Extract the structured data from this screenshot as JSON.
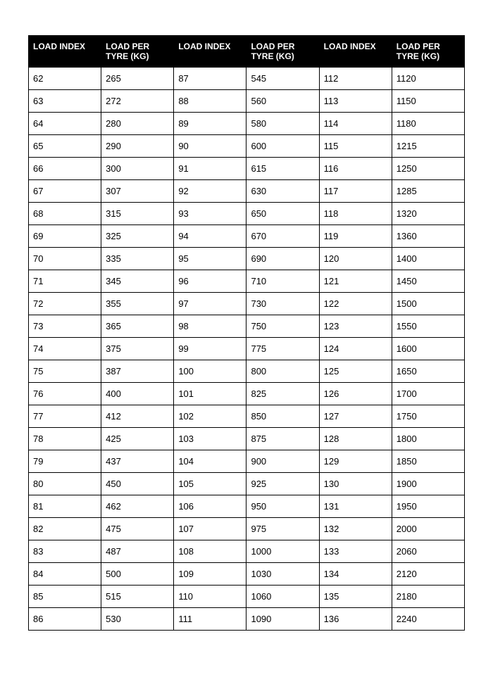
{
  "table": {
    "type": "table",
    "background_color": "#ffffff",
    "header_bg": "#000000",
    "header_fg": "#ffffff",
    "border_color": "#000000",
    "header_fontsize": 12,
    "cell_fontsize": 13,
    "columns": [
      "LOAD INDEX",
      "LOAD PER TYRE (KG)",
      "LOAD INDEX",
      "LOAD PER TYRE (KG)",
      "LOAD INDEX",
      "LOAD PER TYRE (KG)"
    ],
    "rows": [
      [
        "62",
        "265",
        "87",
        "545",
        "112",
        "1120"
      ],
      [
        "63",
        "272",
        "88",
        "560",
        "113",
        "1150"
      ],
      [
        "64",
        "280",
        "89",
        "580",
        "114",
        "1180"
      ],
      [
        "65",
        "290",
        "90",
        "600",
        "115",
        "1215"
      ],
      [
        "66",
        "300",
        "91",
        "615",
        "116",
        "1250"
      ],
      [
        "67",
        "307",
        "92",
        "630",
        "117",
        "1285"
      ],
      [
        "68",
        "315",
        "93",
        "650",
        "118",
        "1320"
      ],
      [
        "69",
        "325",
        "94",
        "670",
        "119",
        "1360"
      ],
      [
        "70",
        "335",
        "95",
        "690",
        "120",
        "1400"
      ],
      [
        "71",
        "345",
        "96",
        "710",
        "121",
        "1450"
      ],
      [
        "72",
        "355",
        "97",
        "730",
        "122",
        "1500"
      ],
      [
        "73",
        "365",
        "98",
        "750",
        "123",
        "1550"
      ],
      [
        "74",
        "375",
        "99",
        "775",
        "124",
        "1600"
      ],
      [
        "75",
        "387",
        "100",
        "800",
        "125",
        "1650"
      ],
      [
        "76",
        "400",
        "101",
        "825",
        "126",
        "1700"
      ],
      [
        "77",
        "412",
        "102",
        "850",
        "127",
        "1750"
      ],
      [
        "78",
        "425",
        "103",
        "875",
        "128",
        "1800"
      ],
      [
        "79",
        "437",
        "104",
        "900",
        "129",
        "1850"
      ],
      [
        "80",
        "450",
        "105",
        "925",
        "130",
        "1900"
      ],
      [
        "81",
        "462",
        "106",
        "950",
        "131",
        "1950"
      ],
      [
        "82",
        "475",
        "107",
        "975",
        "132",
        "2000"
      ],
      [
        "83",
        "487",
        "108",
        "1000",
        "133",
        "2060"
      ],
      [
        "84",
        "500",
        "109",
        "1030",
        "134",
        "2120"
      ],
      [
        "85",
        "515",
        "110",
        "1060",
        "135",
        "2180"
      ],
      [
        "86",
        "530",
        "111",
        "1090",
        "136",
        "2240"
      ]
    ]
  }
}
